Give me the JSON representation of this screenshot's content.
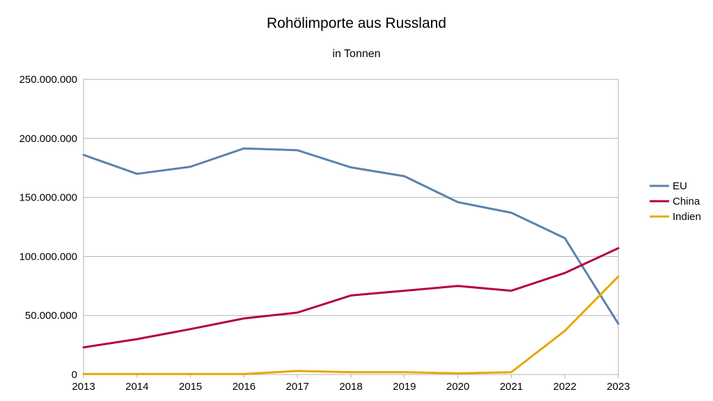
{
  "chart_data": {
    "type": "line",
    "title": "Rohölimporte aus Russland",
    "subtitle": "in Tonnen",
    "xlabel": "",
    "ylabel": "",
    "x": [
      "2013",
      "2014",
      "2015",
      "2016",
      "2017",
      "2018",
      "2019",
      "2020",
      "2021",
      "2022",
      "2023"
    ],
    "ylim": [
      0,
      250000000
    ],
    "yticks": [
      0,
      50000000,
      100000000,
      150000000,
      200000000,
      250000000
    ],
    "ytick_labels": [
      "0",
      "50.000.000",
      "100.000.000",
      "150.000.000",
      "200.000.000",
      "250.000.000"
    ],
    "grid": "horizontal",
    "legend_position": "right",
    "series": [
      {
        "name": "EU",
        "color": "#5b82ab",
        "values": [
          186000000,
          170000000,
          176000000,
          191500000,
          190000000,
          175500000,
          168000000,
          146000000,
          137000000,
          115500000,
          43000000
        ]
      },
      {
        "name": "China",
        "color": "#b5003f",
        "values": [
          23000000,
          30000000,
          38500000,
          47500000,
          52500000,
          67000000,
          71000000,
          75000000,
          71000000,
          86000000,
          107000000
        ]
      },
      {
        "name": "Indien",
        "color": "#e5a800",
        "values": [
          500000,
          500000,
          500000,
          500000,
          3000000,
          2000000,
          2000000,
          1000000,
          2000000,
          37000000,
          83000000
        ]
      }
    ]
  }
}
